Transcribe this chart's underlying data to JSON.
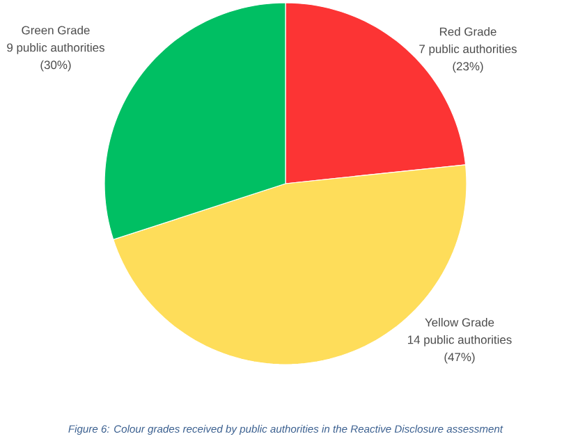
{
  "chart_data": {
    "type": "pie",
    "categories": [
      "Red Grade",
      "Yellow Grade",
      "Green Grade"
    ],
    "values": [
      7,
      14,
      9
    ],
    "colors": [
      "#fc3434",
      "#fedd5a",
      "#00bf63"
    ],
    "value_labels": [
      "7 public authorities",
      "14 public authorities",
      "9 public authorities"
    ],
    "annotations": [
      "(23%)",
      "(47%)",
      "(30%)",
      "Figure 6: Colour grades received by public authorities in the Reactive Disclosure assessment"
    ]
  }
}
